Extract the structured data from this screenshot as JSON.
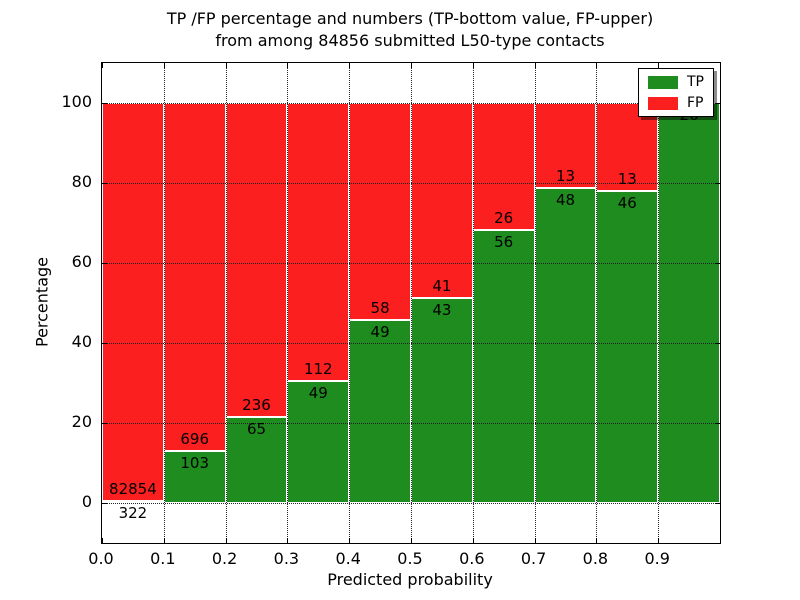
{
  "chart_data": {
    "type": "bar",
    "stacked": true,
    "title_line1": "TP /FP percentage and numbers (TP-bottom value, FP-upper)",
    "title_line2": "from among 84856 submitted L50-type contacts",
    "xlabel": "Predicted probability",
    "ylabel": "Percentage",
    "xtick_labels": [
      "0.0",
      "0.1",
      "0.2",
      "0.3",
      "0.4",
      "0.5",
      "0.6",
      "0.7",
      "0.8",
      "0.9"
    ],
    "yticks": [
      0,
      20,
      40,
      60,
      80,
      100
    ],
    "xlim": [
      0.0,
      1.0
    ],
    "ylim": [
      -10,
      110
    ],
    "bin_width": 0.1,
    "grid": true,
    "legend_position": "upper right",
    "series": [
      {
        "name": "TP",
        "color": "#1e8c1e",
        "values": [
          322,
          103,
          65,
          49,
          49,
          43,
          56,
          48,
          46,
          26
        ]
      },
      {
        "name": "FP",
        "color": "#fb1f1f",
        "values": [
          82854,
          696,
          236,
          112,
          58,
          41,
          26,
          13,
          13,
          0
        ]
      }
    ],
    "tp_percentages": [
      0.39,
      12.89,
      21.59,
      30.43,
      45.79,
      51.19,
      68.29,
      78.69,
      77.97,
      100.0
    ],
    "total_submitted": 84856
  }
}
